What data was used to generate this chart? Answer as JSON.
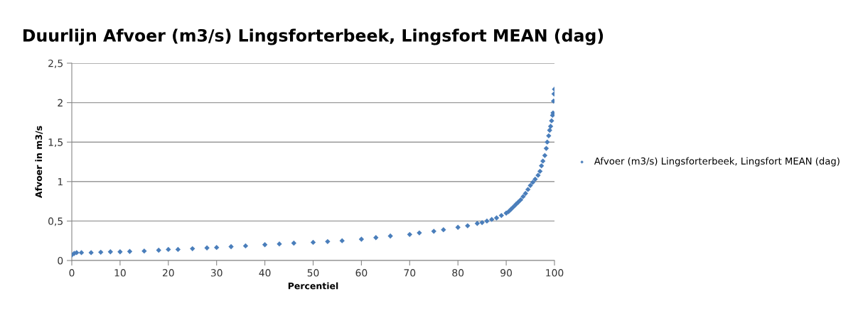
{
  "chart_data": {
    "type": "scatter",
    "title": "Duurlijn Afvoer (m3/s) Lingsforterbeek, Lingsfort MEAN (dag)",
    "xlabel": "Percentiel",
    "ylabel": "Afvoer in m3/s",
    "xlim": [
      0,
      100
    ],
    "xticks": [
      0,
      10,
      20,
      30,
      40,
      50,
      60,
      70,
      80,
      90,
      100
    ],
    "ylim": [
      0,
      2.5
    ],
    "yticks": [
      0,
      {
        "value": 0.5,
        "label": "0,5"
      },
      1,
      {
        "value": 1.5,
        "label": "1,5"
      },
      2,
      {
        "value": 2.5,
        "label": "2,5"
      }
    ],
    "grid": "y",
    "legend": "right",
    "marker": "diamond",
    "series": [
      {
        "name": "Afvoer (m3/s) Lingsforterbeek, Lingsfort MEAN (dag)",
        "color": "#4a7ebb",
        "x": [
          0,
          0.5,
          1,
          2,
          4,
          6,
          8,
          10,
          12,
          15,
          18,
          20,
          22,
          25,
          28,
          30,
          33,
          36,
          40,
          43,
          46,
          50,
          53,
          56,
          60,
          63,
          66,
          70,
          72,
          75,
          77,
          80,
          82,
          84,
          85,
          86,
          87,
          88,
          89,
          90,
          90.5,
          91,
          91.5,
          92,
          92.5,
          93,
          93.5,
          94,
          94.5,
          95,
          95.5,
          96,
          96.6,
          97,
          97.3,
          97.6,
          98,
          98.3,
          98.5,
          98.8,
          99,
          99.2,
          99.4,
          99.6,
          99.7,
          99.8,
          99.9,
          100
        ],
        "values": [
          0.07,
          0.09,
          0.1,
          0.1,
          0.1,
          0.105,
          0.11,
          0.11,
          0.115,
          0.12,
          0.13,
          0.14,
          0.14,
          0.15,
          0.16,
          0.165,
          0.175,
          0.185,
          0.2,
          0.21,
          0.22,
          0.23,
          0.24,
          0.25,
          0.27,
          0.29,
          0.31,
          0.33,
          0.35,
          0.37,
          0.39,
          0.42,
          0.44,
          0.47,
          0.48,
          0.5,
          0.52,
          0.54,
          0.57,
          0.6,
          0.62,
          0.65,
          0.68,
          0.71,
          0.74,
          0.77,
          0.81,
          0.85,
          0.9,
          0.95,
          0.99,
          1.03,
          1.08,
          1.13,
          1.2,
          1.26,
          1.33,
          1.42,
          1.5,
          1.58,
          1.65,
          1.7,
          1.77,
          1.84,
          1.87,
          2.02,
          2.11,
          2.17
        ]
      }
    ]
  }
}
